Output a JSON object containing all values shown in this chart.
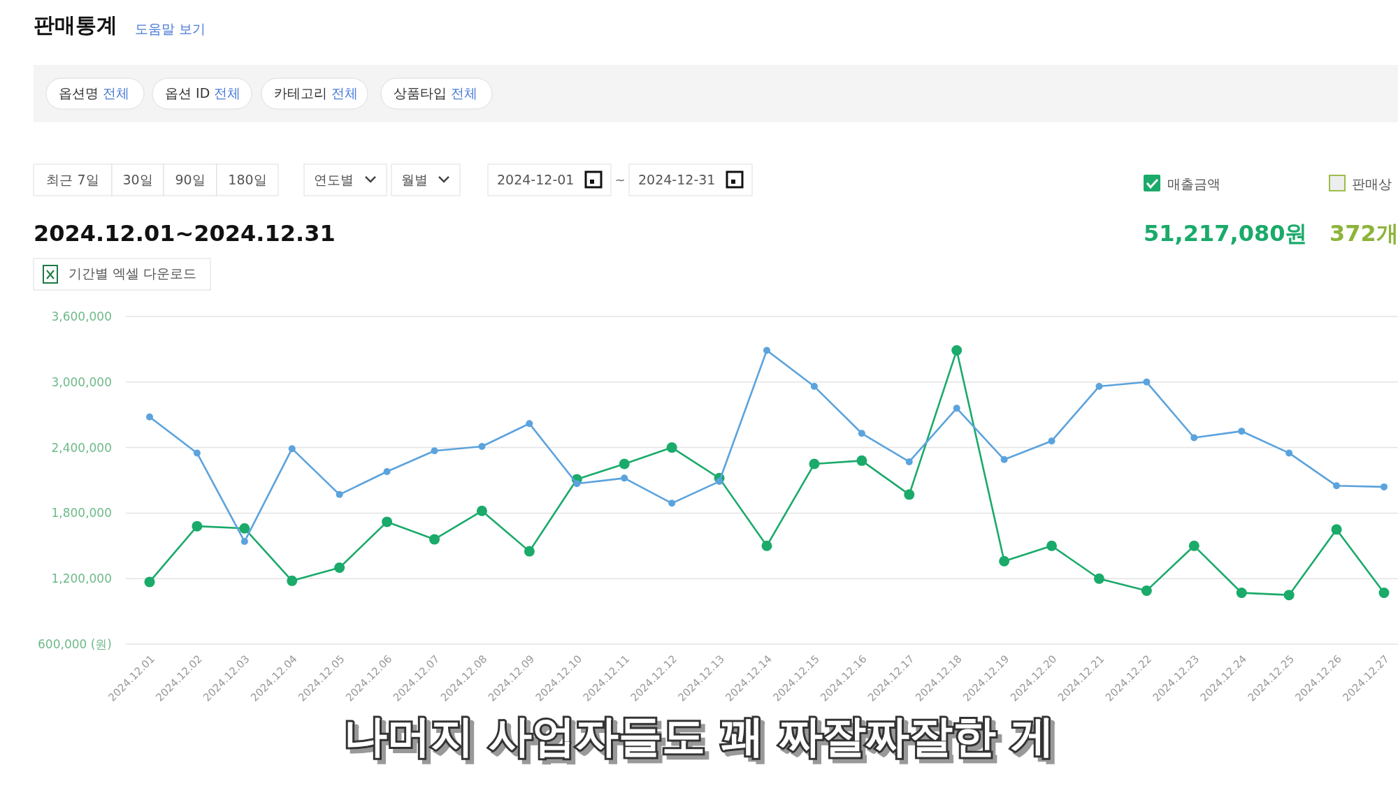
{
  "chart_data": {
    "type": "line",
    "title": "판매통계",
    "subtitle": "2024.12.01~2024.12.31",
    "categories": [
      "2024.12.01",
      "2024.12.02",
      "2024.12.03",
      "2024.12.04",
      "2024.12.05",
      "2024.12.06",
      "2024.12.07",
      "2024.12.08",
      "2024.12.09",
      "2024.12.10",
      "2024.12.11",
      "2024.12.12",
      "2024.12.13",
      "2024.12.14",
      "2024.12.15",
      "2024.12.16",
      "2024.12.17",
      "2024.12.18",
      "2024.12.19",
      "2024.12.20",
      "2024.12.21",
      "2024.12.22",
      "2024.12.23",
      "2024.12.24",
      "2024.12.25",
      "2024.12.26",
      "2024.12.27"
    ],
    "series": [
      {
        "name": "매출금액",
        "color": "#1aaa6a",
        "values": [
          1170000,
          1680000,
          1660000,
          1180000,
          1300000,
          1720000,
          1560000,
          1820000,
          1450000,
          2110000,
          2250000,
          2400000,
          2120000,
          1500000,
          2250000,
          2280000,
          1970000,
          3290000,
          1360000,
          1500000,
          1200000,
          1090000,
          1500000,
          1070000,
          1050000,
          1650000,
          1070000
        ]
      },
      {
        "color": "#5ba3dd",
        "values": [
          2680000,
          2350000,
          1540000,
          2390000,
          1970000,
          2180000,
          2370000,
          2410000,
          2620000,
          2070000,
          2120000,
          1890000,
          2090000,
          3290000,
          2960000,
          2530000,
          2270000,
          2760000,
          2290000,
          2460000,
          2960000,
          3000000,
          2490000,
          2550000,
          2350000,
          2050000,
          2040000
        ]
      }
    ],
    "ylim": [
      600000,
      3600000
    ],
    "yticks": [
      {
        "value": 600000,
        "label": "600,000 (원)"
      },
      {
        "value": 1200000,
        "label": "1,200,000"
      },
      {
        "value": 1800000,
        "label": "1,800,000"
      },
      {
        "value": 2400000,
        "label": "2,400,000"
      },
      {
        "value": 3000000,
        "label": "3,000,000"
      },
      {
        "value": 3600000,
        "label": "3,600,000"
      }
    ],
    "grid": "y",
    "marker": "circle",
    "line_style": "solid",
    "legend": "top right",
    "annotations": [
      "도움말 보기",
      "옵션명 전체",
      "옵션 ID 전체",
      "카테고리 전체",
      "상품타입 전체",
      "최근 7일",
      "30일",
      "90일",
      "180일",
      "연도별",
      "월별",
      "2024-12-01",
      "~",
      "2024-12-31",
      "기간별 엑셀 다운로드",
      "판매상",
      "51,217,080원",
      "372개",
      "나머지 사업자들도 꽤 짜잘짜잘한 게"
    ]
  }
}
